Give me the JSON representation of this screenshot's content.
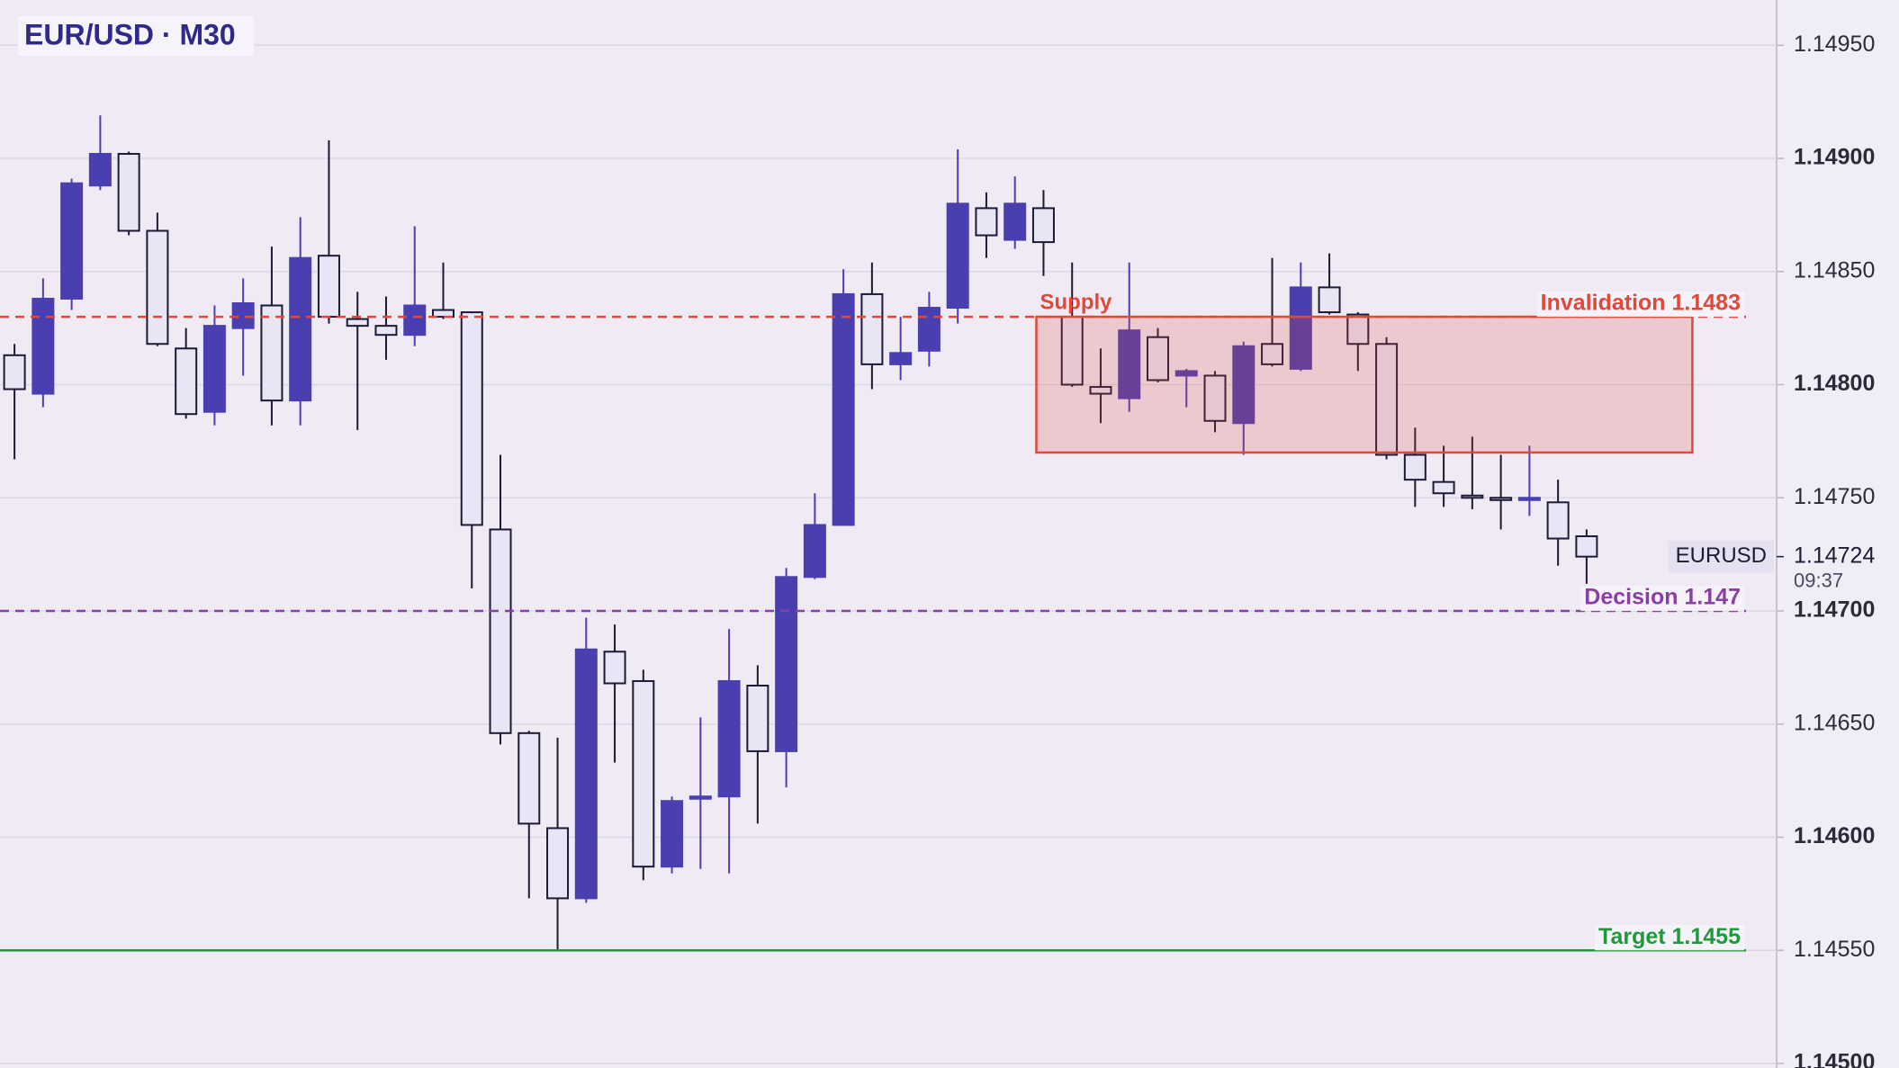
{
  "chart_data": {
    "type": "candlestick",
    "title": "EUR/USD · M30",
    "up_color": "#4a3fb0",
    "down_color": "#e8e6f5",
    "open": [
      1.14813,
      1.14796,
      1.14838,
      1.14888,
      1.14902,
      1.14868,
      1.14816,
      1.14788,
      1.14825,
      1.14835,
      1.14793,
      1.14857,
      1.14829,
      1.14826,
      1.14822,
      1.14833,
      1.14832,
      1.14736,
      1.14646,
      1.14604,
      1.14573,
      1.14682,
      1.14669,
      1.14587,
      1.14617,
      1.14618,
      1.14667,
      1.14638,
      1.14715,
      1.14738,
      1.1484,
      1.14809,
      1.14815,
      1.14834,
      1.14878,
      1.14864,
      1.14878,
      1.1483,
      1.14799,
      1.14794,
      1.14821,
      1.14804,
      1.14804,
      1.14783,
      1.14818,
      1.14807,
      1.14843,
      1.14831,
      1.14818,
      1.14769,
      1.14757,
      1.14751,
      1.1475,
      1.14749,
      1.14748,
      1.14733
    ],
    "high": [
      1.14818,
      1.14847,
      1.14891,
      1.14919,
      1.14903,
      1.14876,
      1.14825,
      1.14835,
      1.14847,
      1.14861,
      1.14874,
      1.14908,
      1.14841,
      1.14839,
      1.1487,
      1.14854,
      1.14832,
      1.14769,
      1.14647,
      1.14644,
      1.14697,
      1.14694,
      1.14674,
      1.14618,
      1.14653,
      1.14692,
      1.14676,
      1.14719,
      1.14752,
      1.14851,
      1.14854,
      1.1483,
      1.14841,
      1.14904,
      1.14885,
      1.14892,
      1.14886,
      1.14854,
      1.14816,
      1.14854,
      1.14825,
      1.14807,
      1.14806,
      1.14819,
      1.14856,
      1.14854,
      1.14858,
      1.14832,
      1.14821,
      1.14781,
      1.14773,
      1.14777,
      1.14769,
      1.14773,
      1.14758,
      1.14736
    ],
    "low": [
      1.14767,
      1.1479,
      1.14833,
      1.14886,
      1.14866,
      1.14817,
      1.14785,
      1.14782,
      1.14804,
      1.14782,
      1.14782,
      1.14827,
      1.1478,
      1.14811,
      1.14817,
      1.14829,
      1.1471,
      1.14641,
      1.14573,
      1.1455,
      1.14571,
      1.14633,
      1.14581,
      1.14584,
      1.14586,
      1.14584,
      1.14606,
      1.14622,
      1.14714,
      1.14738,
      1.14798,
      1.14802,
      1.14808,
      1.14827,
      1.14856,
      1.1486,
      1.14848,
      1.14799,
      1.14783,
      1.14788,
      1.14801,
      1.1479,
      1.14779,
      1.14769,
      1.14808,
      1.14806,
      1.14831,
      1.14806,
      1.14767,
      1.14746,
      1.14746,
      1.14745,
      1.14736,
      1.14742,
      1.1472,
      1.14712
    ],
    "close": [
      1.14798,
      1.14838,
      1.14889,
      1.14902,
      1.14868,
      1.14818,
      1.14787,
      1.14826,
      1.14836,
      1.14793,
      1.14856,
      1.1483,
      1.14826,
      1.14822,
      1.14835,
      1.1483,
      1.14738,
      1.14646,
      1.14606,
      1.14573,
      1.14683,
      1.14668,
      1.14587,
      1.14616,
      1.14618,
      1.14669,
      1.14638,
      1.14715,
      1.14738,
      1.1484,
      1.14809,
      1.14814,
      1.14834,
      1.1488,
      1.14866,
      1.1488,
      1.14863,
      1.148,
      1.14796,
      1.14824,
      1.14802,
      1.14806,
      1.14784,
      1.14817,
      1.14809,
      1.14843,
      1.14832,
      1.14818,
      1.14769,
      1.14758,
      1.14752,
      1.1475,
      1.14749,
      1.1475,
      1.14732,
      1.14724
    ],
    "ylim": [
      1.14498,
      1.1497
    ],
    "yticks": [
      {
        "value": 1.145,
        "label": "1.14500"
      },
      {
        "value": 1.1455,
        "label": "1.14550"
      },
      {
        "value": 1.146,
        "label": "1.14600"
      },
      {
        "value": 1.1465,
        "label": "1.14650"
      },
      {
        "value": 1.147,
        "label": "1.14700"
      },
      {
        "value": 1.1475,
        "label": "1.14750"
      },
      {
        "value": 1.148,
        "label": "1.14800"
      },
      {
        "value": 1.1485,
        "label": "1.14850"
      },
      {
        "value": 1.149,
        "label": "1.14900"
      },
      {
        "value": 1.1495,
        "label": "1.14950"
      }
    ],
    "grid": true,
    "zone": {
      "label": "Supply",
      "top": 1.1483,
      "bottom": 1.1477,
      "start": 35.75,
      "end": 58.7,
      "color": "#e0483a"
    },
    "levels": [
      {
        "label": "Invalidation 1.1483",
        "value": 1.1483,
        "color": "#e0483a",
        "style": "dashed"
      },
      {
        "label": "Decision 1.147",
        "value": 1.147,
        "color": "#8a3fa8",
        "style": "dashed"
      },
      {
        "label": "Target 1.1455",
        "value": 1.1455,
        "color": "#1f9a3a",
        "style": "solid"
      }
    ],
    "last": {
      "symbol": "EURUSD",
      "price": 1.14724,
      "countdown": "09:37"
    }
  }
}
